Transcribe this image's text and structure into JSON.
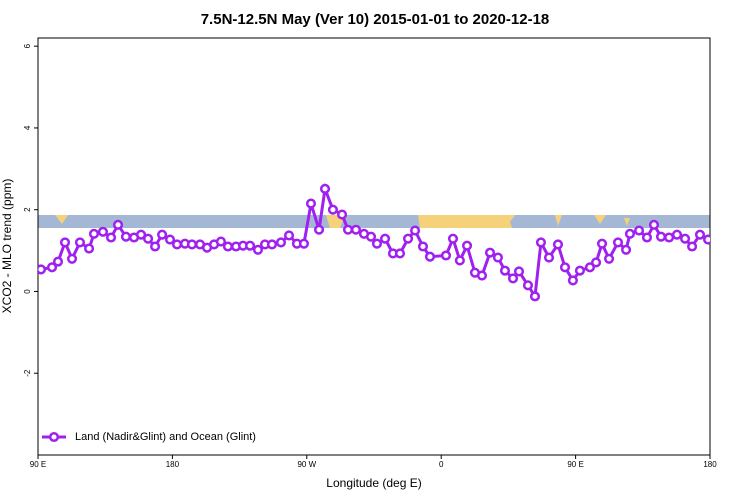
{
  "chart_data": {
    "type": "line",
    "title": "7.5N-12.5N May (Ver 10)   2015-01-01 to 2020-12-18",
    "x_label": "Longitude (deg E)",
    "y_label": "XCO2 - MLO trend (ppm)",
    "xlim": [
      90,
      540
    ],
    "ylim": [
      -4,
      6.2
    ],
    "xticks": [
      {
        "value": 90,
        "label": "90 E"
      },
      180,
      {
        "value": 270,
        "label": "90 W"
      },
      {
        "value": 360,
        "label": "0"
      },
      {
        "value": 450,
        "label": "90 E"
      },
      {
        "value": 540,
        "label": "180"
      }
    ],
    "yticks": [
      -2,
      0,
      2,
      4,
      6
    ],
    "legend": "bottom-left",
    "x": [
      92.0,
      99.4,
      103.4,
      108.1,
      112.8,
      118.1,
      124.2,
      127.5,
      133.5,
      138.9,
      143.6,
      148.9,
      154.3,
      159.0,
      163.7,
      168.4,
      173.1,
      178.4,
      183.1,
      188.4,
      193.1,
      198.5,
      203.2,
      207.9,
      212.5,
      217.2,
      222.6,
      227.3,
      232.0,
      237.3,
      242.0,
      246.7,
      252.7,
      258.1,
      263.4,
      268.1,
      272.8,
      278.2,
      282.2,
      287.5,
      293.6,
      297.6,
      302.9,
      308.3,
      313.0,
      317.0,
      322.4,
      327.7,
      332.4,
      337.8,
      342.5,
      347.8,
      352.5,
      363.2,
      367.9,
      372.5,
      377.3,
      382.6,
      387.3,
      392.7,
      398.0,
      402.7,
      408.1,
      412.1,
      418.1,
      422.8,
      426.8,
      432.2,
      438.2,
      442.9,
      448.2,
      452.9,
      459.6,
      463.7,
      467.7,
      472.4,
      478.4,
      483.8,
      486.4,
      492.5,
      497.8,
      502.5,
      507.2,
      512.6,
      517.9,
      523.3,
      528.0,
      533.3,
      538.7
    ],
    "series": [
      {
        "name": "Land (Nadir&Glint) and Ocean (Glint)",
        "color": "#a020f0",
        "values": [
          0.54,
          0.59,
          0.73,
          1.2,
          0.8,
          1.2,
          1.05,
          1.41,
          1.46,
          1.32,
          1.63,
          1.34,
          1.32,
          1.39,
          1.29,
          1.1,
          1.39,
          1.27,
          1.15,
          1.17,
          1.15,
          1.15,
          1.07,
          1.15,
          1.22,
          1.1,
          1.1,
          1.12,
          1.12,
          1.02,
          1.15,
          1.15,
          1.2,
          1.37,
          1.17,
          1.17,
          2.15,
          1.51,
          2.51,
          2.0,
          1.88,
          1.51,
          1.51,
          1.41,
          1.34,
          1.17,
          1.29,
          0.93,
          0.93,
          1.29,
          1.49,
          1.1,
          0.85,
          0.88,
          1.29,
          0.76,
          1.12,
          0.46,
          0.39,
          0.95,
          0.83,
          0.51,
          0.32,
          0.49,
          0.15,
          -0.12,
          1.2,
          0.83,
          1.15,
          0.59,
          0.27,
          0.51,
          0.59,
          0.71,
          1.17,
          0.8,
          1.2,
          1.02,
          1.41,
          1.49,
          1.32,
          1.63,
          1.34,
          1.32,
          1.39,
          1.29,
          1.1,
          1.39,
          1.27
        ]
      }
    ]
  }
}
